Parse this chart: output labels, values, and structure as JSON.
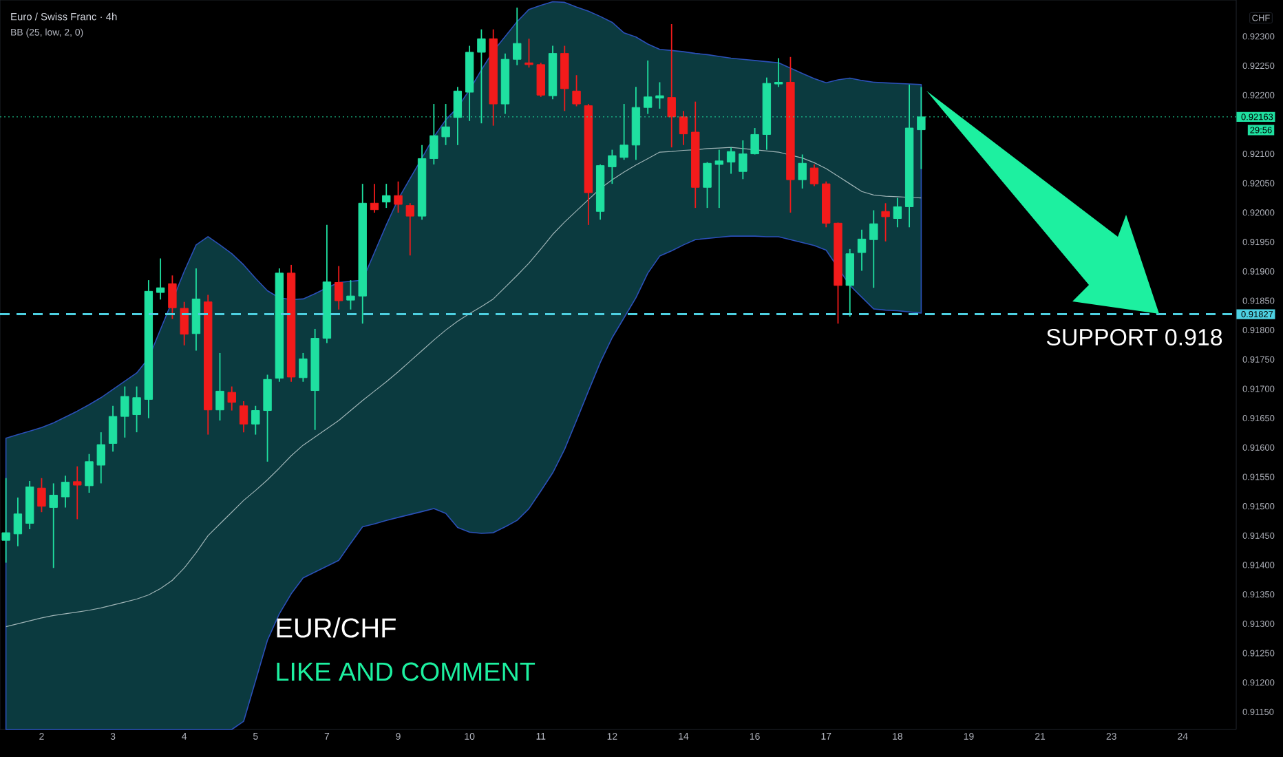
{
  "chart_data": {
    "type": "candlestick",
    "title": "Euro / Swiss Franc · 4h",
    "subtitle": "BB (25, low, 2, 0)",
    "categories": [
      null,
      null,
      null,
      "2",
      null,
      null,
      null,
      null,
      null,
      "3",
      null,
      null,
      null,
      null,
      null,
      "4",
      null,
      null,
      null,
      null,
      null,
      "5",
      null,
      null,
      null,
      null,
      null,
      "7",
      null,
      null,
      null,
      null,
      null,
      "9",
      null,
      null,
      null,
      null,
      null,
      "10",
      null,
      null,
      null,
      null,
      null,
      "11",
      null,
      null,
      null,
      null,
      null,
      "12",
      null,
      null,
      null,
      null,
      null,
      "14",
      null,
      null,
      null,
      null,
      null,
      "16",
      null,
      null,
      null,
      null,
      null,
      "17",
      null,
      null,
      null,
      null,
      null,
      "18",
      null,
      null,
      null,
      null,
      null,
      "19",
      null,
      null,
      null,
      null,
      null,
      "21",
      null,
      null,
      null,
      null,
      null,
      "23",
      null,
      null,
      null,
      null,
      null,
      "24",
      null,
      null,
      null,
      null
    ],
    "ohlc": [
      [
        0.91442,
        0.91548,
        0.91404,
        0.91455
      ],
      [
        0.91453,
        0.91515,
        0.91432,
        0.91487
      ],
      [
        0.91471,
        0.91543,
        0.91461,
        0.91533
      ],
      [
        0.91531,
        0.91548,
        0.9149,
        0.915
      ],
      [
        0.91498,
        0.91539,
        0.91395,
        0.91519
      ],
      [
        0.91516,
        0.91552,
        0.91498,
        0.91541
      ],
      [
        0.91542,
        0.91568,
        0.91478,
        0.91536
      ],
      [
        0.91535,
        0.91589,
        0.91523,
        0.91576
      ],
      [
        0.9157,
        0.91626,
        0.91539,
        0.91605
      ],
      [
        0.91607,
        0.91671,
        0.91593,
        0.91653
      ],
      [
        0.91653,
        0.91704,
        0.91617,
        0.91687
      ],
      [
        0.91656,
        0.91704,
        0.91626,
        0.91685
      ],
      [
        0.91682,
        0.91885,
        0.9165,
        0.91866
      ],
      [
        0.91864,
        0.91922,
        0.91852,
        0.91872
      ],
      [
        0.91879,
        0.91893,
        0.91819,
        0.91838
      ],
      [
        0.91837,
        0.91848,
        0.91774,
        0.91793
      ],
      [
        0.91794,
        0.91905,
        0.91765,
        0.91853
      ],
      [
        0.91848,
        0.9186,
        0.91622,
        0.91664
      ],
      [
        0.91664,
        0.91761,
        0.91646,
        0.91696
      ],
      [
        0.91694,
        0.91704,
        0.91663,
        0.91677
      ],
      [
        0.91671,
        0.91679,
        0.91626,
        0.9164
      ],
      [
        0.9164,
        0.91671,
        0.91622,
        0.91663
      ],
      [
        0.91663,
        0.91724,
        0.91576,
        0.91716
      ],
      [
        0.91718,
        0.91905,
        0.91712,
        0.91897
      ],
      [
        0.91897,
        0.91911,
        0.91712,
        0.9172
      ],
      [
        0.91719,
        0.91761,
        0.91712,
        0.91751
      ],
      [
        0.91697,
        0.91802,
        0.9163,
        0.91786
      ],
      [
        0.91786,
        0.91979,
        0.91778,
        0.91882
      ],
      [
        0.91881,
        0.91909,
        0.91835,
        0.9185
      ],
      [
        0.91851,
        0.91885,
        0.91835,
        0.91858
      ],
      [
        0.91858,
        0.92049,
        0.91811,
        0.92016
      ],
      [
        0.92016,
        0.92049,
        0.92,
        0.92005
      ],
      [
        0.92018,
        0.92049,
        0.92008,
        0.92029
      ],
      [
        0.92029,
        0.92053,
        0.92,
        0.92014
      ],
      [
        0.92012,
        0.92016,
        0.91927,
        0.91994
      ],
      [
        0.91994,
        0.92115,
        0.91988,
        0.92092
      ],
      [
        0.92092,
        0.92185,
        0.92082,
        0.92131
      ],
      [
        0.92129,
        0.92185,
        0.92115,
        0.92146
      ],
      [
        0.92162,
        0.92214,
        0.92115,
        0.92207
      ],
      [
        0.92205,
        0.92284,
        0.92156,
        0.92273
      ],
      [
        0.92273,
        0.92312,
        0.92152,
        0.92296
      ],
      [
        0.92296,
        0.92312,
        0.92148,
        0.92185
      ],
      [
        0.92185,
        0.92271,
        0.92168,
        0.92261
      ],
      [
        0.92261,
        0.92349,
        0.92251,
        0.92288
      ],
      [
        0.92255,
        0.92296,
        0.92247,
        0.92252
      ],
      [
        0.92252,
        0.92255,
        0.92197,
        0.922
      ],
      [
        0.92199,
        0.92284,
        0.92193,
        0.92271
      ],
      [
        0.92271,
        0.92284,
        0.92173,
        0.92211
      ],
      [
        0.92207,
        0.92234,
        0.92181,
        0.92185
      ],
      [
        0.92182,
        0.92185,
        0.91979,
        0.92034
      ],
      [
        0.92002,
        0.92082,
        0.91988,
        0.9208
      ],
      [
        0.92078,
        0.92107,
        0.92049,
        0.92097
      ],
      [
        0.92094,
        0.92185,
        0.9209,
        0.92115
      ],
      [
        0.92115,
        0.92214,
        0.9209,
        0.92179
      ],
      [
        0.92179,
        0.92259,
        0.92168,
        0.92197
      ],
      [
        0.92195,
        0.92222,
        0.92177,
        0.92199
      ],
      [
        0.92196,
        0.92321,
        0.92111,
        0.92163
      ],
      [
        0.92163,
        0.92173,
        0.92115,
        0.92134
      ],
      [
        0.92137,
        0.92189,
        0.92008,
        0.92043
      ],
      [
        0.92043,
        0.92086,
        0.92008,
        0.92084
      ],
      [
        0.92082,
        0.92107,
        0.92008,
        0.92088
      ],
      [
        0.92086,
        0.92111,
        0.92066,
        0.92104
      ],
      [
        0.9207,
        0.92123,
        0.92057,
        0.921
      ],
      [
        0.921,
        0.92144,
        0.92099,
        0.92133
      ],
      [
        0.92133,
        0.9223,
        0.92107,
        0.9222
      ],
      [
        0.92219,
        0.92263,
        0.92214,
        0.92222
      ],
      [
        0.92222,
        0.92265,
        0.92,
        0.92056
      ],
      [
        0.92056,
        0.92099,
        0.92041,
        0.92084
      ],
      [
        0.92076,
        0.92082,
        0.92045,
        0.92049
      ],
      [
        0.92049,
        0.92053,
        0.91975,
        0.91982
      ],
      [
        0.91982,
        0.91983,
        0.91811,
        0.91876
      ],
      [
        0.91876,
        0.91938,
        0.91823,
        0.9193
      ],
      [
        0.91932,
        0.91971,
        0.91901,
        0.91955
      ],
      [
        0.91954,
        0.92004,
        0.91872,
        0.91981
      ],
      [
        0.92002,
        0.92016,
        0.91951,
        0.91993
      ],
      [
        0.9199,
        0.92025,
        0.91975,
        0.9201
      ],
      [
        0.9201,
        0.92218,
        0.91975,
        0.92144
      ],
      [
        0.92141,
        0.92214,
        0.92074,
        0.92163
      ],
      null,
      null,
      null,
      null,
      null,
      null,
      null,
      null,
      null,
      null,
      null,
      null,
      null,
      null,
      null,
      null,
      null,
      null,
      null,
      null,
      null,
      null,
      null,
      null,
      null,
      null
    ],
    "colors": [
      "#1fe0a0",
      "#1fe0a0",
      "#1fe0a0",
      "#f21b1b",
      "#1fe0a0",
      "#1fe0a0",
      "#f21b1b",
      "#1fe0a0",
      "#1fe0a0",
      "#1fe0a0",
      "#1fe0a0",
      "#1fe0a0",
      "#1fe0a0",
      "#1fe0a0",
      "#f21b1b",
      "#f21b1b",
      "#1fe0a0",
      "#f21b1b",
      "#1fe0a0",
      "#f21b1b",
      "#f21b1b",
      "#1fe0a0",
      "#1fe0a0",
      "#1fe0a0",
      "#f21b1b",
      "#1fe0a0",
      "#1fe0a0",
      "#1fe0a0",
      "#f21b1b",
      "#1fe0a0",
      "#1fe0a0",
      "#f21b1b",
      "#1fe0a0",
      "#f21b1b",
      "#f21b1b",
      "#1fe0a0",
      "#1fe0a0",
      "#1fe0a0",
      "#1fe0a0",
      "#1fe0a0",
      "#1fe0a0",
      "#f21b1b",
      "#1fe0a0",
      "#1fe0a0",
      "#f21b1b",
      "#f21b1b",
      "#1fe0a0",
      "#f21b1b",
      "#f21b1b",
      "#f21b1b",
      "#1fe0a0",
      "#1fe0a0",
      "#1fe0a0",
      "#1fe0a0",
      "#1fe0a0",
      "#1fe0a0",
      "#f21b1b",
      "#f21b1b",
      "#f21b1b",
      "#1fe0a0",
      "#1fe0a0",
      "#1fe0a0",
      "#1fe0a0",
      "#1fe0a0",
      "#1fe0a0",
      "#1fe0a0",
      "#f21b1b",
      "#1fe0a0",
      "#f21b1b",
      "#f21b1b",
      "#f21b1b",
      "#1fe0a0",
      "#1fe0a0",
      "#1fe0a0",
      "#f21b1b",
      "#1fe0a0",
      "#1fe0a0",
      "#1fe0a0",
      null,
      null,
      null,
      null,
      null,
      null,
      null,
      null,
      null,
      null,
      null,
      null,
      null,
      null,
      null,
      null,
      null,
      null,
      null,
      null,
      null,
      null,
      null,
      null,
      null,
      null
    ],
    "series": [
      {
        "type": "line",
        "color": "#9fb4b6",
        "values": [
          0.91295,
          0.913,
          0.91305,
          0.9131,
          0.91314,
          0.91317,
          0.9132,
          0.91323,
          0.91327,
          0.91332,
          0.91337,
          0.91342,
          0.91349,
          0.9136,
          0.91374,
          0.91395,
          0.91421,
          0.9145,
          0.9147,
          0.9149,
          0.9151,
          0.91527,
          0.91545,
          0.91565,
          0.91586,
          0.91604,
          0.91618,
          0.91632,
          0.91646,
          0.91663,
          0.9168,
          0.91696,
          0.91712,
          0.91729,
          0.91747,
          0.91765,
          0.91783,
          0.918,
          0.91815,
          0.91828,
          0.9184,
          0.91853,
          0.91873,
          0.91893,
          0.91914,
          0.91938,
          0.91963,
          0.91984,
          0.92003,
          0.92022,
          0.92041,
          0.92056,
          0.92069,
          0.92081,
          0.92092,
          0.92103,
          0.92104,
          0.92106,
          0.92107,
          0.92109,
          0.9211,
          0.92111,
          0.92109,
          0.92107,
          0.92105,
          0.92103,
          0.92098,
          0.92093,
          0.92085,
          0.92075,
          0.92062,
          0.92049,
          0.92036,
          0.9203,
          0.92028,
          0.92027,
          0.92026,
          0.92025,
          null,
          null,
          null,
          null,
          null,
          null,
          null,
          null,
          null,
          null,
          null,
          null,
          null,
          null,
          null,
          null,
          null,
          null,
          null,
          null,
          null,
          null,
          null,
          null,
          null,
          null
        ],
        "upper": [
          0.91616,
          0.91622,
          0.91628,
          0.91634,
          0.91642,
          0.91652,
          0.91662,
          0.91673,
          0.91685,
          0.91699,
          0.91713,
          0.91727,
          0.91752,
          0.91801,
          0.9185,
          0.919,
          0.91945,
          0.91959,
          0.91945,
          0.9193,
          0.91911,
          0.91888,
          0.91867,
          0.91855,
          0.91852,
          0.91853,
          0.91862,
          0.91872,
          0.91881,
          0.91883,
          0.91885,
          0.91932,
          0.91979,
          0.92023,
          0.92058,
          0.92093,
          0.92129,
          0.92158,
          0.92179,
          0.92209,
          0.92243,
          0.92275,
          0.923,
          0.92325,
          0.92346,
          0.92353,
          0.92359,
          0.92358,
          0.9235,
          0.92343,
          0.92334,
          0.92324,
          0.92306,
          0.92299,
          0.92287,
          0.92278,
          0.92276,
          0.92274,
          0.92271,
          0.92269,
          0.92266,
          0.92263,
          0.92261,
          0.92259,
          0.92257,
          0.92255,
          0.92246,
          0.92237,
          0.92228,
          0.92221,
          0.92226,
          0.92229,
          0.92225,
          0.92222,
          0.92221,
          0.9222,
          0.92219,
          0.92218,
          null,
          null,
          null,
          null,
          null,
          null,
          null,
          null,
          null,
          null,
          null,
          null,
          null,
          null,
          null,
          null,
          null,
          null,
          null,
          null,
          null,
          null,
          null,
          null,
          null,
          null
        ],
        "lower": [
          0.9112,
          0.9112,
          0.9112,
          0.9112,
          0.9112,
          0.9112,
          0.9112,
          0.9112,
          0.9112,
          0.9112,
          0.9112,
          0.9112,
          0.9112,
          0.9112,
          0.9112,
          0.9112,
          0.9112,
          0.9112,
          0.9112,
          0.9112,
          0.91134,
          0.91203,
          0.91272,
          0.91317,
          0.91351,
          0.91378,
          0.91388,
          0.91398,
          0.91408,
          0.91437,
          0.91465,
          0.9147,
          0.91476,
          0.91481,
          0.91486,
          0.91491,
          0.91496,
          0.91488,
          0.91464,
          0.91456,
          0.91454,
          0.91455,
          0.91465,
          0.91476,
          0.91496,
          0.91526,
          0.91557,
          0.91597,
          0.91646,
          0.91696,
          0.91745,
          0.91787,
          0.91821,
          0.91855,
          0.91897,
          0.91926,
          0.91935,
          0.91945,
          0.91954,
          0.91956,
          0.91958,
          0.9196,
          0.9196,
          0.9196,
          0.91959,
          0.91959,
          0.91954,
          0.91949,
          0.91944,
          0.91936,
          0.91906,
          0.91876,
          0.91856,
          0.91836,
          0.91834,
          0.91833,
          0.91831,
          0.91829,
          null,
          null,
          null,
          null,
          null,
          null,
          null,
          null,
          null,
          null,
          null,
          null,
          null,
          null,
          null,
          null,
          null,
          null,
          null,
          null,
          null,
          null,
          null,
          null,
          null,
          null
        ]
      }
    ],
    "ylim": [
      0.9112,
      0.92362
    ],
    "yticks": [
      {
        "value": 0.9115,
        "label": "0.91150"
      },
      {
        "value": 0.912,
        "label": "0.91200"
      },
      {
        "value": 0.9125,
        "label": "0.91250"
      },
      {
        "value": 0.913,
        "label": "0.91300"
      },
      {
        "value": 0.9135,
        "label": "0.91350"
      },
      {
        "value": 0.914,
        "label": "0.91400"
      },
      {
        "value": 0.9145,
        "label": "0.91450"
      },
      {
        "value": 0.915,
        "label": "0.91500"
      },
      {
        "value": 0.9155,
        "label": "0.91550"
      },
      {
        "value": 0.916,
        "label": "0.91600"
      },
      {
        "value": 0.9165,
        "label": "0.91650"
      },
      {
        "value": 0.917,
        "label": "0.91700"
      },
      {
        "value": 0.9175,
        "label": "0.91750"
      },
      {
        "value": 0.918,
        "label": "0.91800"
      },
      {
        "value": 0.9185,
        "label": "0.91850"
      },
      {
        "value": 0.919,
        "label": "0.91900"
      },
      {
        "value": 0.9195,
        "label": "0.91950"
      },
      {
        "value": 0.92,
        "label": "0.92000"
      },
      {
        "value": 0.9205,
        "label": "0.92050"
      },
      {
        "value": 0.921,
        "label": "0.92100"
      },
      {
        "value": 0.922,
        "label": "0.92200"
      },
      {
        "value": 0.9225,
        "label": "0.92250"
      },
      {
        "value": 0.923,
        "label": "0.92300"
      }
    ],
    "ref_lines": [
      {
        "axis": "y",
        "value": 0.91827,
        "label": "0.91827",
        "color": "#4dd0e1",
        "line_style": "dashed"
      },
      {
        "axis": "y",
        "value": 0.92163,
        "label": "0.92163",
        "color": "#1fe0a0",
        "line_style": "dotted"
      }
    ],
    "annotations": [
      "SUPPORT 0.918",
      "EUR/CHF",
      "LIKE AND COMMENT",
      "CHF",
      "29:56"
    ]
  }
}
